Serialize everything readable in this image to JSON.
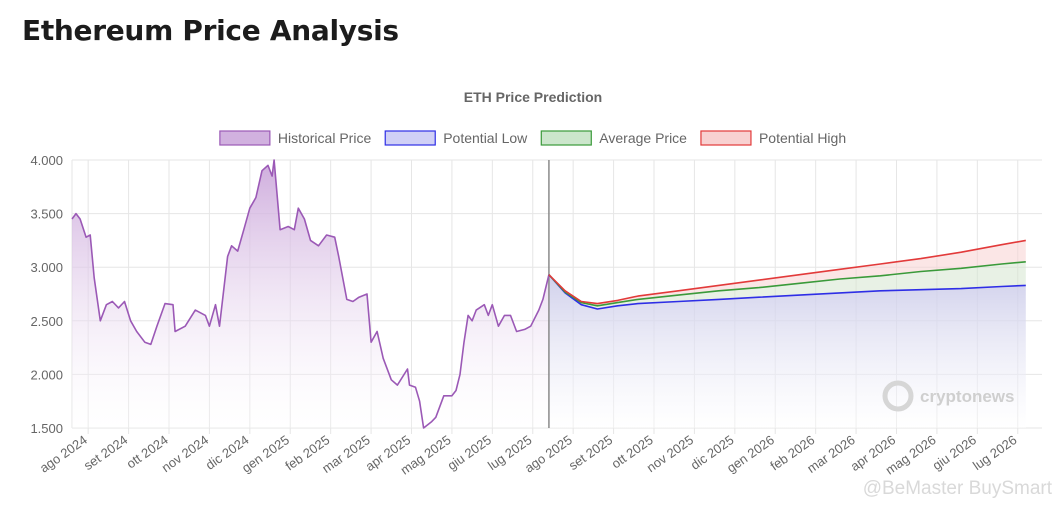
{
  "page": {
    "title": "Ethereum Price Analysis"
  },
  "watermarks": {
    "brand": "cryptonews",
    "overlay": "@BeMaster BuySmart"
  },
  "chart_data": {
    "type": "line",
    "title": "ETH Price Prediction",
    "ylim": [
      1500,
      4000
    ],
    "yticks": [
      1500,
      2000,
      2500,
      3000,
      3500,
      4000
    ],
    "ytick_labels": [
      "1.500",
      "2.000",
      "2.500",
      "3.000",
      "3.500",
      "4.000"
    ],
    "x_range": [
      0,
      24
    ],
    "xticks": [
      {
        "x": 0.4,
        "label": "ago 2024"
      },
      {
        "x": 1.4,
        "label": "set 2024"
      },
      {
        "x": 2.4,
        "label": "ott 2024"
      },
      {
        "x": 3.4,
        "label": "nov 2024"
      },
      {
        "x": 4.4,
        "label": "dic 2024"
      },
      {
        "x": 5.4,
        "label": "gen 2025"
      },
      {
        "x": 6.4,
        "label": "feb 2025"
      },
      {
        "x": 7.4,
        "label": "mar 2025"
      },
      {
        "x": 8.4,
        "label": "apr 2025"
      },
      {
        "x": 9.4,
        "label": "mag 2025"
      },
      {
        "x": 10.4,
        "label": "giu 2025"
      },
      {
        "x": 11.4,
        "label": "lug 2025"
      },
      {
        "x": 12.4,
        "label": "ago 2025"
      },
      {
        "x": 13.4,
        "label": "set 2025"
      },
      {
        "x": 14.4,
        "label": "ott 2025"
      },
      {
        "x": 15.4,
        "label": "nov 2025"
      },
      {
        "x": 16.4,
        "label": "dic 2025"
      },
      {
        "x": 17.4,
        "label": "gen 2026"
      },
      {
        "x": 18.4,
        "label": "feb 2026"
      },
      {
        "x": 19.4,
        "label": "mar 2026"
      },
      {
        "x": 20.4,
        "label": "apr 2026"
      },
      {
        "x": 21.4,
        "label": "mag 2026"
      },
      {
        "x": 22.4,
        "label": "giu 2026"
      },
      {
        "x": 23.4,
        "label": "lug 2026"
      }
    ],
    "grid": true,
    "legend_position": "top",
    "divider_x": 11.8,
    "series": [
      {
        "name": "Historical Price",
        "color": "#9b59b6",
        "fill": "#c9a3d9",
        "points": [
          [
            0,
            3450
          ],
          [
            0.1,
            3500
          ],
          [
            0.2,
            3450
          ],
          [
            0.35,
            3280
          ],
          [
            0.45,
            3300
          ],
          [
            0.55,
            2900
          ],
          [
            0.7,
            2500
          ],
          [
            0.85,
            2650
          ],
          [
            1.0,
            2680
          ],
          [
            1.15,
            2620
          ],
          [
            1.3,
            2680
          ],
          [
            1.45,
            2500
          ],
          [
            1.6,
            2400
          ],
          [
            1.8,
            2300
          ],
          [
            1.95,
            2280
          ],
          [
            2.1,
            2450
          ],
          [
            2.3,
            2660
          ],
          [
            2.5,
            2650
          ],
          [
            2.55,
            2400
          ],
          [
            2.8,
            2450
          ],
          [
            3.05,
            2600
          ],
          [
            3.3,
            2550
          ],
          [
            3.4,
            2450
          ],
          [
            3.55,
            2650
          ],
          [
            3.65,
            2450
          ],
          [
            3.85,
            3100
          ],
          [
            3.95,
            3200
          ],
          [
            4.1,
            3150
          ],
          [
            4.25,
            3350
          ],
          [
            4.4,
            3550
          ],
          [
            4.55,
            3650
          ],
          [
            4.7,
            3900
          ],
          [
            4.85,
            3950
          ],
          [
            4.95,
            3850
          ],
          [
            5.0,
            4000
          ],
          [
            5.15,
            3350
          ],
          [
            5.35,
            3380
          ],
          [
            5.5,
            3350
          ],
          [
            5.6,
            3550
          ],
          [
            5.75,
            3450
          ],
          [
            5.9,
            3250
          ],
          [
            6.1,
            3200
          ],
          [
            6.3,
            3300
          ],
          [
            6.5,
            3280
          ],
          [
            6.6,
            3100
          ],
          [
            6.8,
            2700
          ],
          [
            6.95,
            2680
          ],
          [
            7.1,
            2720
          ],
          [
            7.3,
            2750
          ],
          [
            7.4,
            2300
          ],
          [
            7.55,
            2400
          ],
          [
            7.7,
            2150
          ],
          [
            7.9,
            1950
          ],
          [
            8.05,
            1900
          ],
          [
            8.3,
            2050
          ],
          [
            8.35,
            1900
          ],
          [
            8.5,
            1880
          ],
          [
            8.6,
            1750
          ],
          [
            8.7,
            1500
          ],
          [
            8.9,
            1560
          ],
          [
            9.0,
            1600
          ],
          [
            9.2,
            1800
          ],
          [
            9.4,
            1800
          ],
          [
            9.5,
            1850
          ],
          [
            9.6,
            2000
          ],
          [
            9.7,
            2300
          ],
          [
            9.8,
            2550
          ],
          [
            9.9,
            2500
          ],
          [
            10.0,
            2600
          ],
          [
            10.2,
            2650
          ],
          [
            10.3,
            2550
          ],
          [
            10.4,
            2650
          ],
          [
            10.55,
            2450
          ],
          [
            10.7,
            2550
          ],
          [
            10.85,
            2550
          ],
          [
            11.0,
            2400
          ],
          [
            11.2,
            2420
          ],
          [
            11.35,
            2450
          ],
          [
            11.55,
            2600
          ],
          [
            11.65,
            2700
          ],
          [
            11.8,
            2930
          ]
        ]
      },
      {
        "name": "Potential Low",
        "color": "#2e2ee6",
        "fill": "#c8c8f5",
        "points": [
          [
            11.8,
            2930
          ],
          [
            12.2,
            2760
          ],
          [
            12.6,
            2650
          ],
          [
            13.0,
            2610
          ],
          [
            13.5,
            2640
          ],
          [
            14,
            2660
          ],
          [
            15,
            2680
          ],
          [
            16,
            2700
          ],
          [
            17,
            2720
          ],
          [
            18,
            2740
          ],
          [
            19,
            2760
          ],
          [
            20,
            2780
          ],
          [
            21,
            2790
          ],
          [
            22,
            2800
          ],
          [
            23,
            2820
          ],
          [
            23.6,
            2830
          ]
        ]
      },
      {
        "name": "Average Price",
        "color": "#3a9a3a",
        "fill": "#c3e2c3",
        "points": [
          [
            11.8,
            2930
          ],
          [
            12.2,
            2770
          ],
          [
            12.6,
            2670
          ],
          [
            13.0,
            2640
          ],
          [
            13.5,
            2670
          ],
          [
            14,
            2700
          ],
          [
            15,
            2740
          ],
          [
            16,
            2780
          ],
          [
            17,
            2810
          ],
          [
            18,
            2850
          ],
          [
            19,
            2890
          ],
          [
            20,
            2920
          ],
          [
            21,
            2960
          ],
          [
            22,
            2990
          ],
          [
            23,
            3030
          ],
          [
            23.6,
            3050
          ]
        ]
      },
      {
        "name": "Potential High",
        "color": "#e23a3a",
        "fill": "#f7c9c9",
        "points": [
          [
            11.8,
            2930
          ],
          [
            12.2,
            2780
          ],
          [
            12.6,
            2680
          ],
          [
            13.0,
            2660
          ],
          [
            13.5,
            2690
          ],
          [
            14,
            2730
          ],
          [
            15,
            2780
          ],
          [
            16,
            2830
          ],
          [
            17,
            2880
          ],
          [
            18,
            2930
          ],
          [
            19,
            2980
          ],
          [
            20,
            3030
          ],
          [
            21,
            3080
          ],
          [
            22,
            3140
          ],
          [
            23,
            3210
          ],
          [
            23.6,
            3250
          ]
        ]
      }
    ]
  }
}
